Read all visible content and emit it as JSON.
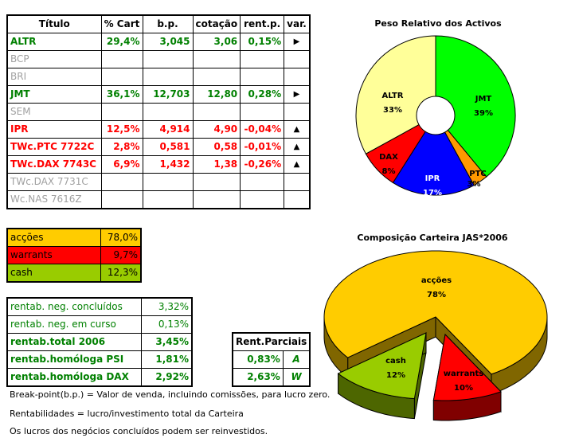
{
  "holdings": {
    "headers": [
      "Título",
      "% Cart",
      "b.p.",
      "cotação",
      "rent.p.",
      "var."
    ],
    "rows": [
      {
        "title": "ALTR",
        "cart": "29,4%",
        "bp": "3,045",
        "cot": "3,06",
        "rent": "0,15%",
        "var": "▶",
        "style": "g"
      },
      {
        "title": "BCP",
        "cart": "",
        "bp": "",
        "cot": "",
        "rent": "",
        "var": "",
        "style": "gr"
      },
      {
        "title": "BRI",
        "cart": "",
        "bp": "",
        "cot": "",
        "rent": "",
        "var": "",
        "style": "gr"
      },
      {
        "title": "JMT",
        "cart": "36,1%",
        "bp": "12,703",
        "cot": "12,80",
        "rent": "0,28%",
        "var": "▶",
        "style": "g"
      },
      {
        "title": "SEM",
        "cart": "",
        "bp": "",
        "cot": "",
        "rent": "",
        "var": "",
        "style": "gr"
      },
      {
        "title": "IPR",
        "cart": "12,5%",
        "bp": "4,914",
        "cot": "4,90",
        "rent": "-0,04%",
        "var": "▲",
        "style": "r"
      },
      {
        "title": "TWc.PTC 7722C",
        "cart": "2,8%",
        "bp": "0,581",
        "cot": "0,58",
        "rent": "-0,01%",
        "var": "▲",
        "style": "r"
      },
      {
        "title": "TWc.DAX 7743C",
        "cart": "6,9%",
        "bp": "1,432",
        "cot": "1,38",
        "rent": "-0,26%",
        "var": "▲",
        "style": "r"
      },
      {
        "title": "TWc.DAX 7731C",
        "cart": "",
        "bp": "",
        "cot": "",
        "rent": "",
        "var": "",
        "style": "gr"
      },
      {
        "title": "Wc.NAS 7616Z",
        "cart": "",
        "bp": "",
        "cot": "",
        "rent": "",
        "var": "",
        "style": "gr"
      }
    ]
  },
  "allocation": [
    {
      "label": "acções",
      "value": "78,0%",
      "color": "#ffcc00"
    },
    {
      "label": "warrants",
      "value": "9,7%",
      "color": "#ff0000"
    },
    {
      "label": "cash",
      "value": "12,3%",
      "color": "#99cc00"
    }
  ],
  "rentab": [
    {
      "label": "rentab. neg. concluídos",
      "value": "3,32%",
      "bold": false
    },
    {
      "label": "rentab. neg. em curso",
      "value": "0,13%",
      "bold": false
    },
    {
      "label": "rentab.total 2006",
      "value": "3,45%",
      "bold": true
    },
    {
      "label": "rentab.homóloga PSI",
      "value": "1,81%",
      "bold": true
    },
    {
      "label": "rentab.homóloga DAX",
      "value": "2,92%",
      "bold": true
    }
  ],
  "parciais": {
    "header": "Rent.Parciais",
    "rows": [
      {
        "value": "0,83%",
        "tag": "A"
      },
      {
        "value": "2,63%",
        "tag": "W"
      }
    ]
  },
  "notes": [
    "Break-point(b.p.) = Valor de venda, incluindo comissões, para lucro zero.",
    "Rentabilidades = lucro/investimento total da Carteira",
    "Os lucros dos negócios concluídos podem ser reinvestidos."
  ],
  "chart_data": [
    {
      "type": "pie",
      "title": "Peso Relativo dos Activos",
      "donut": true,
      "categories": [
        "JMT",
        "PTC",
        "IPR",
        "DAX",
        "ALTR"
      ],
      "values": [
        39,
        3,
        17,
        8,
        33
      ],
      "labels": [
        "39%",
        "3%",
        "17%",
        "8%",
        "33%"
      ],
      "colors": [
        "#00ff00",
        "#ff9900",
        "#0000ff",
        "#ff0000",
        "#ffff99"
      ]
    },
    {
      "type": "pie",
      "title": "Composição Carteira JAS*2006",
      "3d": true,
      "categories": [
        "acções",
        "warrants",
        "cash"
      ],
      "values": [
        78,
        10,
        12
      ],
      "labels": [
        "78%",
        "10%",
        "12%"
      ],
      "colors": [
        "#ffcc00",
        "#ff0000",
        "#99cc00"
      ]
    }
  ]
}
